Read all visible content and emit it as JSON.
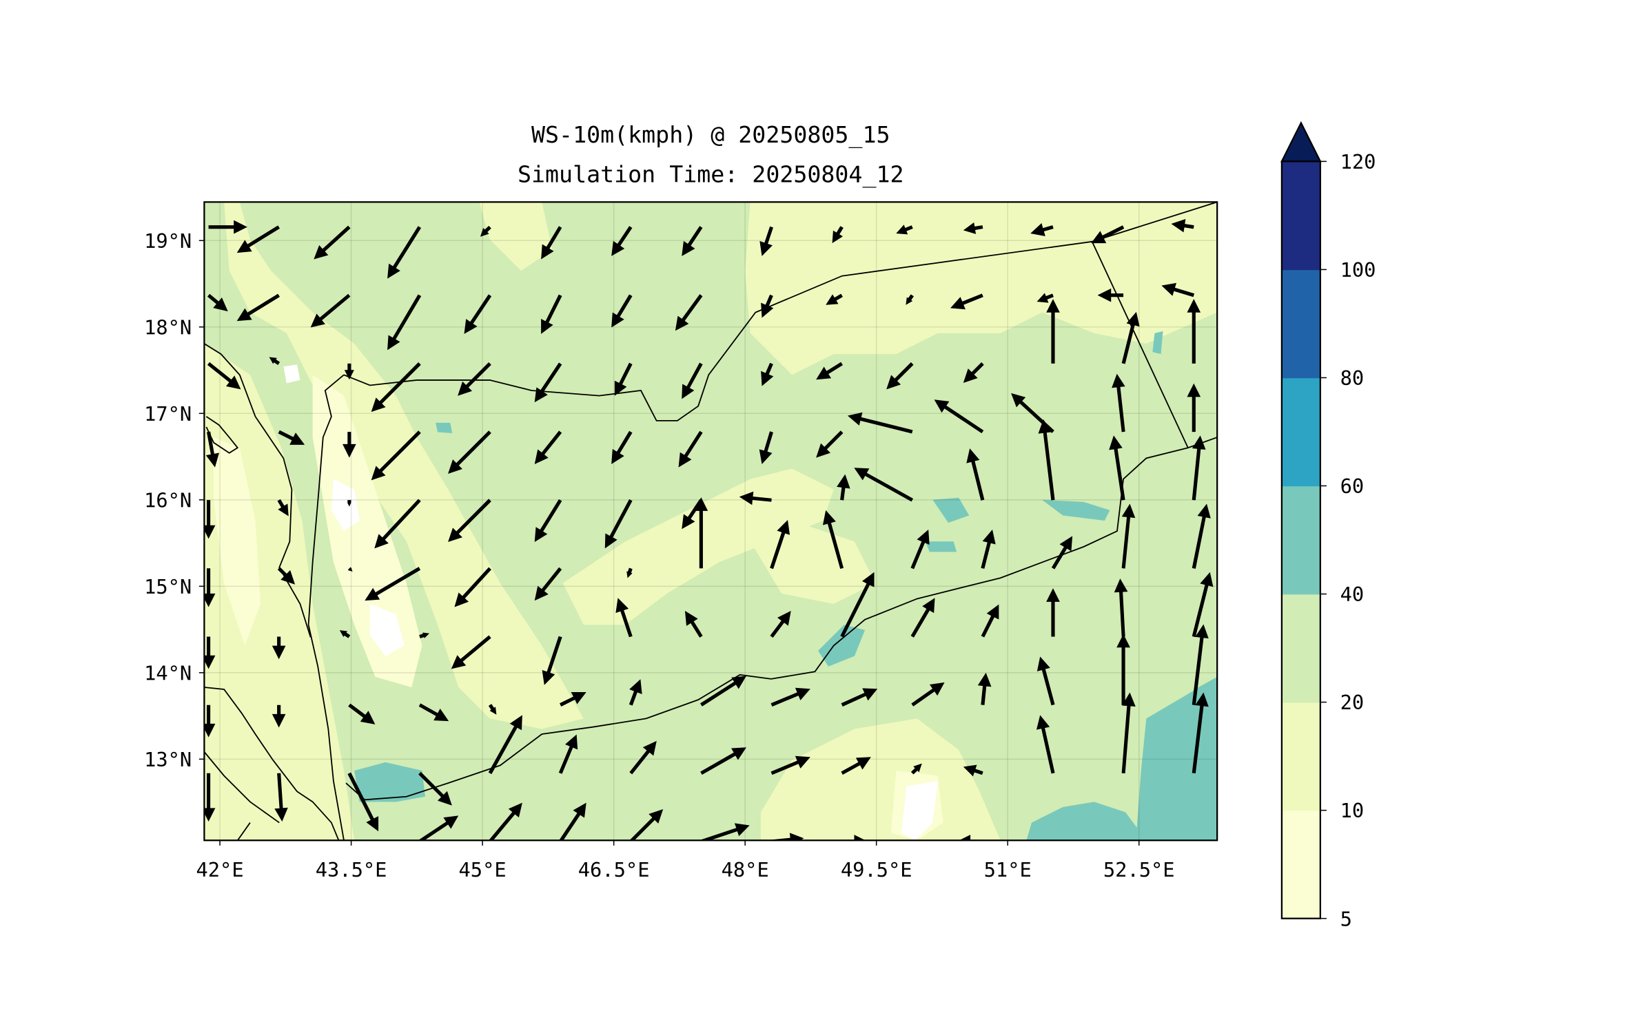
{
  "title": {
    "line1": "WS-10m(kmph) @ 20250805_15",
    "line2": "Simulation Time: 20250804_12"
  },
  "map": {
    "extent_lon": [
      41.82,
      53.39
    ],
    "extent_lat": [
      12.06,
      19.45
    ],
    "lon_ticks": [
      {
        "value": 42,
        "label": "42°E"
      },
      {
        "value": 43.5,
        "label": "43.5°E"
      },
      {
        "value": 45,
        "label": "45°E"
      },
      {
        "value": 46.5,
        "label": "46.5°E"
      },
      {
        "value": 48,
        "label": "48°E"
      },
      {
        "value": 49.5,
        "label": "49.5°E"
      },
      {
        "value": 51,
        "label": "51°E"
      },
      {
        "value": 52.5,
        "label": "52.5°E"
      }
    ],
    "lat_ticks": [
      {
        "value": 19,
        "label": "19°N"
      },
      {
        "value": 18,
        "label": "18°N"
      },
      {
        "value": 17,
        "label": "17°N"
      },
      {
        "value": 16,
        "label": "16°N"
      },
      {
        "value": 15,
        "label": "15°N"
      },
      {
        "value": 14,
        "label": "14°N"
      },
      {
        "value": 13,
        "label": "13°N"
      }
    ],
    "colors": {
      "ws_5_10": "#fbfed3",
      "ws_10_20": "#eff9bd",
      "ws_20_40": "#d1ecb4",
      "ws_40_60": "#78c9bb",
      "ws_60_80": "#2ea4c4",
      "ws_80_100": "#2163a9",
      "ws_100_120": "#1d2c80",
      "ws_over": "#081d58"
    }
  },
  "wind_vectors": {
    "grid_lon0": 41.87,
    "grid_dlon": 0.804,
    "grid_lat0": 19.157,
    "grid_dlat": 0.79,
    "rows_uv": [
      [
        [
          12,
          0
        ],
        [
          -13,
          -8
        ],
        [
          -11,
          -10
        ],
        [
          -10,
          -16
        ],
        [
          -3,
          -3
        ],
        [
          -6,
          -10
        ],
        [
          -6,
          -9
        ],
        [
          -6,
          -9
        ],
        [
          -3,
          -9
        ],
        [
          -3,
          -5
        ],
        [
          -5,
          -2
        ],
        [
          -6,
          -1
        ],
        [
          -7,
          -2
        ],
        [
          -10,
          -5
        ],
        [
          -7,
          1
        ]
      ],
      [
        [
          6,
          -5
        ],
        [
          -13,
          -8
        ],
        [
          -12,
          -10
        ],
        [
          -10,
          -17
        ],
        [
          -8,
          -12
        ],
        [
          -6,
          -12
        ],
        [
          -6,
          -10
        ],
        [
          -8,
          -11
        ],
        [
          -3,
          -7
        ],
        [
          -5,
          -3
        ],
        [
          -2,
          -3
        ],
        [
          -10,
          -4
        ],
        [
          -5,
          -2
        ],
        [
          -8,
          0
        ],
        [
          -10,
          3
        ]
      ],
      [
        [
          10,
          -8
        ],
        [
          -3,
          2
        ],
        [
          0,
          -5
        ],
        [
          -15,
          -15
        ],
        [
          -10,
          -10
        ],
        [
          -8,
          -12
        ],
        [
          -5,
          -10
        ],
        [
          -6,
          -11
        ],
        [
          -3,
          -7
        ],
        [
          -8,
          -5
        ],
        [
          -8,
          -8
        ],
        [
          -6,
          -6
        ],
        [
          0,
          20
        ],
        [
          4,
          16
        ],
        [
          0,
          20
        ]
      ],
      [
        [
          2,
          -11
        ],
        [
          8,
          -4
        ],
        [
          0,
          -8
        ],
        [
          -15,
          -15
        ],
        [
          -13,
          -13
        ],
        [
          -8,
          -10
        ],
        [
          -6,
          -10
        ],
        [
          -7,
          -11
        ],
        [
          -3,
          -10
        ],
        [
          -8,
          -8
        ],
        [
          -20,
          5
        ],
        [
          -15,
          10
        ],
        [
          -13,
          12
        ],
        [
          -2,
          18
        ],
        [
          0,
          15
        ]
      ],
      [
        [
          0,
          -12
        ],
        [
          3,
          -5
        ],
        [
          0,
          -2
        ],
        [
          -14,
          -15
        ],
        [
          -13,
          -13
        ],
        [
          -8,
          -13
        ],
        [
          -8,
          -15
        ],
        [
          -6,
          -9
        ],
        [
          -10,
          1
        ],
        [
          1,
          8
        ],
        [
          -18,
          10
        ],
        [
          -4,
          16
        ],
        [
          -3,
          25
        ],
        [
          -3,
          20
        ],
        [
          2,
          20
        ]
      ],
      [
        [
          0,
          -12
        ],
        [
          5,
          -5
        ],
        [
          1,
          -1
        ],
        [
          -17,
          -10
        ],
        [
          -11,
          -12
        ],
        [
          -8,
          -10
        ],
        [
          -1,
          -3
        ],
        [
          0,
          22
        ],
        [
          5,
          15
        ],
        [
          -5,
          18
        ],
        [
          5,
          12
        ],
        [
          3,
          12
        ],
        [
          6,
          10
        ],
        [
          2,
          20
        ],
        [
          4,
          20
        ]
      ],
      [
        [
          0,
          -10
        ],
        [
          0,
          -7
        ],
        [
          -3,
          2
        ],
        [
          3,
          1
        ],
        [
          -12,
          -10
        ],
        [
          -5,
          -15
        ],
        [
          -4,
          12
        ],
        [
          -5,
          8
        ],
        [
          6,
          8
        ],
        [
          10,
          20
        ],
        [
          7,
          12
        ],
        [
          5,
          10
        ],
        [
          0,
          15
        ],
        [
          -1,
          18
        ],
        [
          5,
          20
        ]
      ],
      [
        [
          0,
          -10
        ],
        [
          0,
          -7
        ],
        [
          8,
          -6
        ],
        [
          9,
          -5
        ],
        [
          2,
          -3
        ],
        [
          8,
          4
        ],
        [
          3,
          8
        ],
        [
          14,
          9
        ],
        [
          12,
          5
        ],
        [
          11,
          5
        ],
        [
          10,
          7
        ],
        [
          1,
          10
        ],
        [
          -4,
          15
        ],
        [
          0,
          22
        ],
        [
          3,
          25
        ]
      ],
      [
        [
          0,
          -15
        ],
        [
          1,
          -15
        ],
        [
          9,
          -18
        ],
        [
          10,
          -10
        ],
        [
          10,
          18
        ],
        [
          5,
          12
        ],
        [
          8,
          10
        ],
        [
          14,
          8
        ],
        [
          12,
          5
        ],
        [
          9,
          5
        ],
        [
          3,
          3
        ],
        [
          -6,
          2
        ],
        [
          -4,
          18
        ],
        [
          2,
          25
        ],
        [
          3,
          25
        ]
      ],
      [
        [
          0,
          0
        ],
        [
          0,
          0
        ],
        [
          0,
          0
        ],
        [
          12,
          8
        ],
        [
          10,
          12
        ],
        [
          8,
          12
        ],
        [
          10,
          10
        ],
        [
          15,
          5
        ],
        [
          10,
          1
        ],
        [
          8,
          0
        ],
        [
          0,
          0
        ],
        [
          -8,
          0
        ],
        [
          0,
          0
        ],
        [
          0,
          0
        ],
        [
          0,
          0
        ]
      ]
    ]
  },
  "colorbar": {
    "levels": [
      {
        "value": 5,
        "label": "5"
      },
      {
        "value": 10,
        "label": "10"
      },
      {
        "value": 20,
        "label": "20"
      },
      {
        "value": 40,
        "label": "40"
      },
      {
        "value": 60,
        "label": "60"
      },
      {
        "value": 80,
        "label": "80"
      },
      {
        "value": 100,
        "label": "100"
      },
      {
        "value": 120,
        "label": "120"
      }
    ],
    "segment_colors": [
      "#fbfed3",
      "#eff9bd",
      "#d1ecb4",
      "#78c9bb",
      "#2ea4c4",
      "#2163a9",
      "#1d2c80"
    ],
    "extend_color": "#081d58"
  }
}
